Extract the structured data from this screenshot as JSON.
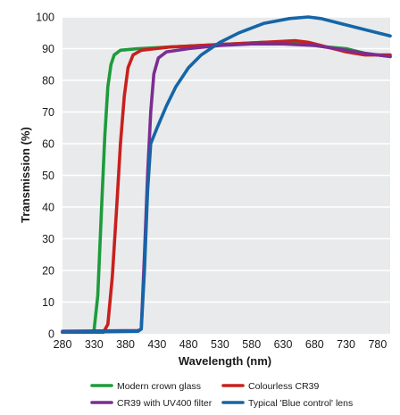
{
  "chart_data": {
    "type": "line",
    "title": "",
    "xlabel": "Wavelength (nm)",
    "ylabel": "Transmission (%)",
    "xlim": [
      280,
      800
    ],
    "ylim": [
      0,
      100
    ],
    "x_ticks": [
      280,
      330,
      380,
      430,
      480,
      530,
      580,
      630,
      680,
      730,
      780
    ],
    "y_ticks": [
      0,
      10,
      20,
      30,
      40,
      50,
      60,
      70,
      80,
      90,
      100
    ],
    "grid": "horizontal",
    "legend_position": "bottom",
    "series": [
      {
        "name": "Modern crown glass",
        "color": "#1e9b3c",
        "points": [
          [
            280,
            0.5
          ],
          [
            320,
            0.5
          ],
          [
            330,
            1
          ],
          [
            336,
            12
          ],
          [
            342,
            40
          ],
          [
            347,
            62
          ],
          [
            352,
            78
          ],
          [
            357,
            85
          ],
          [
            362,
            88
          ],
          [
            372,
            89.5
          ],
          [
            400,
            90
          ],
          [
            450,
            90.5
          ],
          [
            500,
            91
          ],
          [
            550,
            91.5
          ],
          [
            600,
            92
          ],
          [
            640,
            92
          ],
          [
            660,
            91.5
          ],
          [
            700,
            90.5
          ],
          [
            730,
            90
          ],
          [
            760,
            88.5
          ],
          [
            800,
            87.5
          ]
        ]
      },
      {
        "name": "Colourless CR39",
        "color": "#c8201e",
        "points": [
          [
            280,
            0.5
          ],
          [
            345,
            0.5
          ],
          [
            352,
            3
          ],
          [
            359,
            18
          ],
          [
            366,
            40
          ],
          [
            372,
            60
          ],
          [
            378,
            75
          ],
          [
            384,
            84
          ],
          [
            392,
            88
          ],
          [
            405,
            89.5
          ],
          [
            450,
            90.5
          ],
          [
            500,
            91
          ],
          [
            550,
            91.5
          ],
          [
            600,
            92
          ],
          [
            650,
            92.5
          ],
          [
            670,
            92
          ],
          [
            700,
            90.5
          ],
          [
            730,
            89
          ],
          [
            760,
            88
          ],
          [
            800,
            88
          ]
        ]
      },
      {
        "name": "CR39 with UV400 filter",
        "color": "#7b2d91",
        "points": [
          [
            280,
            0.8
          ],
          [
            400,
            1
          ],
          [
            405,
            1.5
          ],
          [
            410,
            25
          ],
          [
            415,
            50
          ],
          [
            420,
            70
          ],
          [
            425,
            82
          ],
          [
            432,
            87
          ],
          [
            445,
            89
          ],
          [
            480,
            90
          ],
          [
            530,
            91
          ],
          [
            580,
            91.5
          ],
          [
            630,
            91.5
          ],
          [
            680,
            91
          ],
          [
            730,
            89.5
          ],
          [
            760,
            88.5
          ],
          [
            800,
            87.5
          ]
        ]
      },
      {
        "name": "Typical 'Blue control' lens",
        "color": "#1565a8",
        "points": [
          [
            280,
            0.5
          ],
          [
            400,
            0.8
          ],
          [
            405,
            1.5
          ],
          [
            410,
            20
          ],
          [
            415,
            45
          ],
          [
            420,
            60
          ],
          [
            430,
            65
          ],
          [
            445,
            72
          ],
          [
            460,
            78
          ],
          [
            480,
            84
          ],
          [
            500,
            88
          ],
          [
            530,
            92
          ],
          [
            560,
            95
          ],
          [
            600,
            98
          ],
          [
            640,
            99.5
          ],
          [
            670,
            100
          ],
          [
            690,
            99.5
          ],
          [
            720,
            98
          ],
          [
            760,
            96
          ],
          [
            800,
            94
          ]
        ]
      }
    ]
  }
}
